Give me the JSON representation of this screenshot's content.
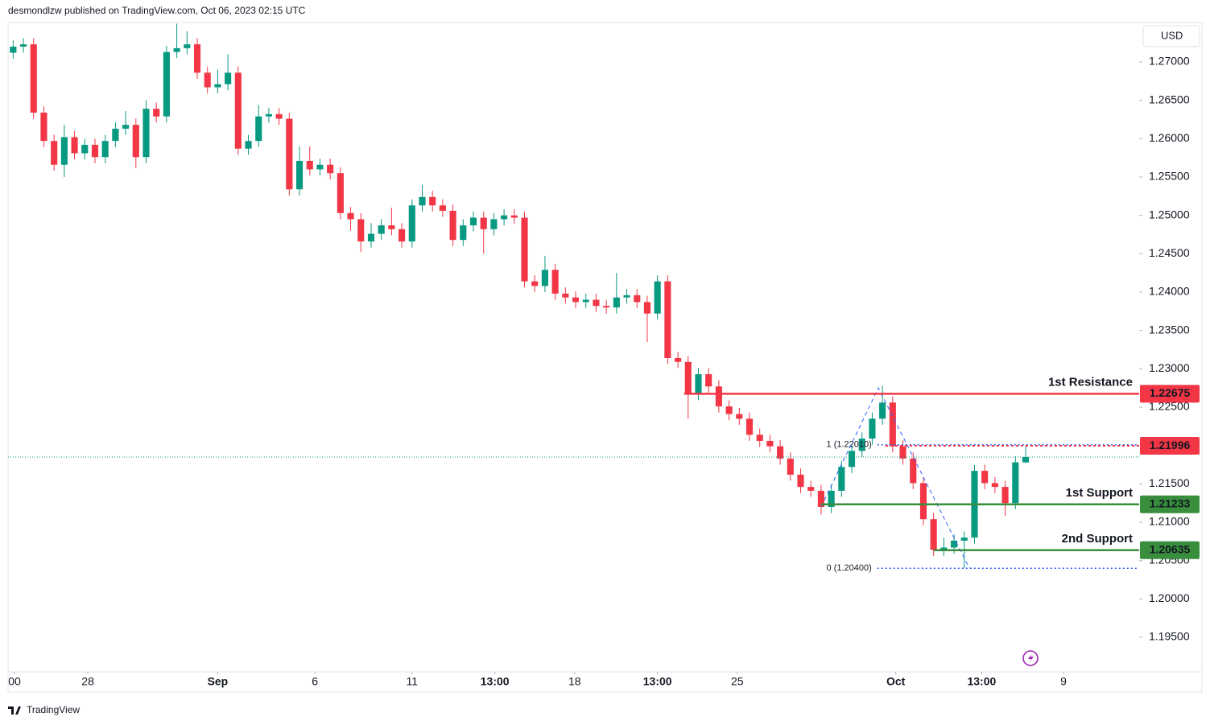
{
  "chart_data": {
    "type": "candlestick",
    "header": "desmondlzw published on TradingView.com, Oct 06, 2023 02:15 UTC",
    "currency": "USD",
    "brand": "TradingView",
    "up_color": "#089981",
    "down_color": "#f23645",
    "open": [
      1.2712,
      1.272,
      1.2723,
      1.2634,
      1.2597,
      1.2566,
      1.2602,
      1.2581,
      1.2592,
      1.2576,
      1.2597,
      1.2613,
      1.2618,
      1.2576,
      1.2639,
      1.2629,
      1.2713,
      1.2718,
      1.2723,
      1.2686,
      1.2667,
      1.2671,
      1.2686,
      1.2587,
      1.2597,
      1.2629,
      1.2632,
      1.2626,
      1.2534,
      1.2571,
      1.256,
      1.2566,
      1.2555,
      1.2503,
      1.2495,
      1.2466,
      1.2476,
      1.2487,
      1.2482,
      1.2466,
      1.2513,
      1.2524,
      1.2513,
      1.2506,
      1.2468,
      1.2487,
      1.2497,
      1.2482,
      1.2495,
      1.25,
      1.2497,
      1.2414,
      1.2408,
      1.2429,
      1.2398,
      1.2393,
      1.2387,
      1.239,
      1.2382,
      1.238,
      1.2393,
      1.2396,
      1.2387,
      1.2372,
      1.2414,
      1.2314,
      1.2309,
      1.2267,
      1.2293,
      1.2277,
      1.2251,
      1.2241,
      1.2235,
      1.2214,
      1.2206,
      1.2199,
      1.2183,
      1.2162,
      1.2146,
      1.2141,
      1.212,
      1.2141,
      1.2172,
      1.2193,
      1.2209,
      1.2235,
      1.2256,
      1.2199,
      1.2183,
      1.2151,
      1.2104,
      1.2064,
      1.2067,
      1.2076,
      1.208,
      1.2167,
      1.2151,
      1.2146,
      1.2125,
      1.2178
    ],
    "high": [
      1.2728,
      1.2731,
      1.2731,
      1.2642,
      1.2605,
      1.2618,
      1.261,
      1.26,
      1.26,
      1.2605,
      1.2621,
      1.2636,
      1.2626,
      1.265,
      1.2647,
      1.2721,
      1.275,
      1.274,
      1.2731,
      1.2694,
      1.269,
      1.271,
      1.2694,
      1.2605,
      1.2644,
      1.264,
      1.264,
      1.2634,
      1.259,
      1.259,
      1.2574,
      1.2574,
      1.2563,
      1.2511,
      1.2503,
      1.249,
      1.2495,
      1.251,
      1.249,
      1.2521,
      1.254,
      1.2532,
      1.2521,
      1.2514,
      1.2495,
      1.2505,
      1.2505,
      1.2503,
      1.2508,
      1.2508,
      1.2505,
      1.2422,
      1.2447,
      1.2437,
      1.2406,
      1.2401,
      1.2398,
      1.2398,
      1.239,
      1.2425,
      1.2404,
      1.2404,
      1.2395,
      1.2422,
      1.2422,
      1.2322,
      1.2317,
      1.2301,
      1.2301,
      1.2285,
      1.2259,
      1.2249,
      1.2243,
      1.2222,
      1.2214,
      1.2207,
      1.2191,
      1.217,
      1.2154,
      1.2149,
      1.2149,
      1.218,
      1.2201,
      1.2217,
      1.2243,
      1.2278,
      1.2264,
      1.2207,
      1.2191,
      1.2159,
      1.2112,
      1.208,
      1.2084,
      1.2088,
      1.2175,
      1.2175,
      1.2159,
      1.2154,
      1.2186,
      1.2199
    ],
    "low": [
      1.2704,
      1.2712,
      1.2626,
      1.2589,
      1.2558,
      1.255,
      1.2573,
      1.2573,
      1.2568,
      1.2568,
      1.2589,
      1.2605,
      1.2562,
      1.2568,
      1.2621,
      1.2621,
      1.2705,
      1.271,
      1.2678,
      1.2659,
      1.2659,
      1.2663,
      1.2579,
      1.2579,
      1.2589,
      1.2621,
      1.2618,
      1.2526,
      1.2526,
      1.2552,
      1.2552,
      1.2547,
      1.2495,
      1.248,
      1.2452,
      1.2458,
      1.2468,
      1.2474,
      1.2458,
      1.2458,
      1.2505,
      1.2505,
      1.2498,
      1.246,
      1.246,
      1.2479,
      1.245,
      1.2474,
      1.2487,
      1.2489,
      1.2406,
      1.24,
      1.24,
      1.239,
      1.2385,
      1.2379,
      1.2379,
      1.2374,
      1.2372,
      1.2372,
      1.2385,
      1.2379,
      1.2335,
      1.2364,
      1.2306,
      1.2301,
      1.2235,
      1.2259,
      1.2269,
      1.2243,
      1.2233,
      1.2227,
      1.2206,
      1.2198,
      1.2191,
      1.2175,
      1.2154,
      1.2138,
      1.2133,
      1.211,
      1.2112,
      1.2133,
      1.2164,
      1.2185,
      1.2201,
      1.2227,
      1.2191,
      1.2175,
      1.2143,
      1.2096,
      1.2056,
      1.2056,
      1.2059,
      1.204,
      1.2072,
      1.2143,
      1.2138,
      1.2108,
      1.2117,
      1.2177
    ],
    "close": [
      1.272,
      1.2723,
      1.2634,
      1.2597,
      1.2566,
      1.2602,
      1.2581,
      1.2592,
      1.2576,
      1.2597,
      1.2613,
      1.2618,
      1.2576,
      1.2639,
      1.2629,
      1.2713,
      1.2718,
      1.2723,
      1.2686,
      1.2667,
      1.2671,
      1.2686,
      1.2587,
      1.2597,
      1.2629,
      1.2632,
      1.2626,
      1.2534,
      1.2571,
      1.256,
      1.2566,
      1.2555,
      1.2503,
      1.2495,
      1.2466,
      1.2476,
      1.2487,
      1.2482,
      1.2466,
      1.2513,
      1.2524,
      1.2513,
      1.2506,
      1.2468,
      1.2487,
      1.2497,
      1.2482,
      1.2495,
      1.25,
      1.2497,
      1.2414,
      1.2408,
      1.2429,
      1.2398,
      1.2393,
      1.2387,
      1.239,
      1.2382,
      1.238,
      1.2393,
      1.2396,
      1.2387,
      1.2372,
      1.2414,
      1.2314,
      1.2309,
      1.2267,
      1.2293,
      1.2277,
      1.2251,
      1.2241,
      1.2235,
      1.2214,
      1.2206,
      1.2199,
      1.2183,
      1.2162,
      1.2146,
      1.2141,
      1.212,
      1.2141,
      1.2172,
      1.2193,
      1.2209,
      1.2235,
      1.2256,
      1.2199,
      1.2183,
      1.2151,
      1.2104,
      1.2064,
      1.2067,
      1.2076,
      1.208,
      1.2167,
      1.2151,
      1.2146,
      1.2125,
      1.2178,
      1.2185
    ],
    "xlim": [
      -0.5,
      110.1
    ],
    "xticks": [
      {
        "value": 0.13,
        "label": "00"
      },
      {
        "value": 7.3,
        "label": "28"
      },
      {
        "value": 20.0,
        "label": "Sep"
      },
      {
        "value": 29.5,
        "label": "6"
      },
      {
        "value": 39.0,
        "label": "11"
      },
      {
        "value": 47.1,
        "label": "13:00"
      },
      {
        "value": 54.9,
        "label": "18"
      },
      {
        "value": 63.0,
        "label": "13:00"
      },
      {
        "value": 70.8,
        "label": "25"
      },
      {
        "value": 86.3,
        "label": "Oct"
      },
      {
        "value": 94.7,
        "label": "13:00"
      },
      {
        "value": 102.7,
        "label": "9"
      }
    ],
    "ylim": [
      1.19049,
      1.27514
    ],
    "yticks": [
      {
        "value": 1.27,
        "label": "1.27000"
      },
      {
        "value": 1.265,
        "label": "1.26500"
      },
      {
        "value": 1.26,
        "label": "1.26000"
      },
      {
        "value": 1.255,
        "label": "1.25500"
      },
      {
        "value": 1.25,
        "label": "1.25000"
      },
      {
        "value": 1.245,
        "label": "1.24500"
      },
      {
        "value": 1.24,
        "label": "1.24000"
      },
      {
        "value": 1.235,
        "label": "1.23500"
      },
      {
        "value": 1.23,
        "label": "1.23000"
      },
      {
        "value": 1.225,
        "label": "1.22500"
      },
      {
        "value": 1.215,
        "label": "1.21500"
      },
      {
        "value": 1.21,
        "label": "1.21000"
      },
      {
        "value": 1.205,
        "label": "1.20500"
      },
      {
        "value": 1.2,
        "label": "1.20000"
      },
      {
        "value": 1.195,
        "label": "1.19500"
      }
    ],
    "levels": [
      {
        "name": "1st Resistance",
        "value": 1.22675,
        "start": 65.6,
        "color": "#f23645"
      },
      {
        "value": 1.21996,
        "start": 85.3,
        "color": "#f23645",
        "style": "dotted"
      },
      {
        "name": "1st Support",
        "value": 1.21233,
        "start": 79.0,
        "color": "#388e3c"
      },
      {
        "name": "2nd Support",
        "value": 1.20635,
        "start": 90.0,
        "color": "#388e3c"
      }
    ],
    "fib": [
      {
        "label": "1 (1.22010)",
        "value": 1.2201,
        "start": 84.5
      },
      {
        "label": "0 (1.20400)",
        "value": 1.204,
        "start": 84.5
      }
    ],
    "fib_color": "#2962ff",
    "zigzag": {
      "x": [
        79.0,
        84.6,
        93.5
      ],
      "y": [
        1.212,
        1.2275,
        1.204
      ]
    }
  }
}
